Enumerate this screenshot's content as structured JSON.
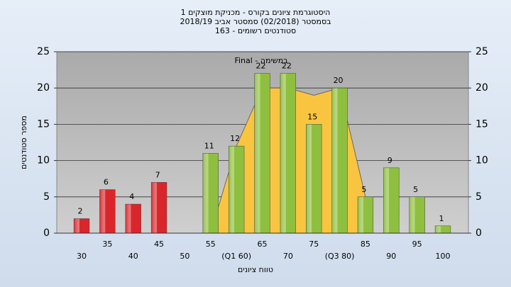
{
  "chart_data": {
    "type": "bar",
    "title": [
      "היסטוגרמת ציונים בקורס - מכניקת מוצקים 1",
      "בסמסטר  (02/2018)  סמסטר אביב 2018/19",
      "סטודנטים רשומים - 163"
    ],
    "annotation": "Final - במשימה",
    "x_label": "טווח ציונים",
    "y_label": "מספר סטודנטים",
    "categories": [
      "30",
      "35",
      "40",
      "45",
      "50",
      "55",
      "(Q1 60)",
      "65",
      "70",
      "75",
      "(Q3 80)",
      "85",
      "90",
      "95",
      "100"
    ],
    "series": [
      {
        "values": [
          2,
          6,
          4,
          7,
          null,
          11,
          12,
          22,
          22,
          15,
          20,
          5,
          9,
          5,
          1
        ],
        "colors": [
          "#d9262b",
          "#d9262b",
          "#d9262b",
          "#d9262b",
          "#d9262b",
          "#8fbf3f",
          "#8fbf3f",
          "#8fbf3f",
          "#8fbf3f",
          "#8fbf3f",
          "#8fbf3f",
          "#8fbf3f",
          "#8fbf3f",
          "#8fbf3f",
          "#8fbf3f"
        ]
      },
      {
        "type": "area",
        "color": "#f9c540",
        "values": [
          null,
          null,
          null,
          null,
          null,
          0,
          12,
          20,
          20,
          19,
          20,
          5,
          null,
          null,
          null
        ]
      }
    ],
    "ylim": [
      0,
      25
    ],
    "yticks": [
      0,
      5,
      10,
      15,
      20,
      25
    ],
    "y2lim": [
      0,
      25
    ],
    "y2ticks": [
      0,
      5,
      10,
      15,
      20,
      25
    ],
    "grid": true
  }
}
